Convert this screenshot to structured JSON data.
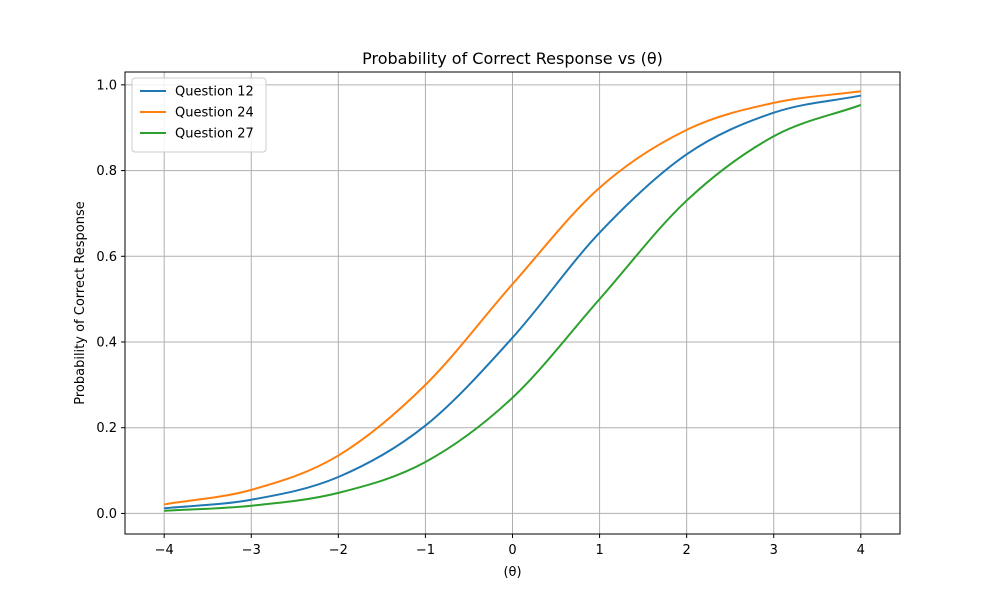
{
  "chart_data": {
    "type": "line",
    "title": "Probability of Correct Response vs (θ)",
    "xlabel": "(θ)",
    "ylabel": "Probability of Correct Response",
    "xlim": [
      -4.45,
      4.45
    ],
    "ylim": [
      -0.048,
      1.03
    ],
    "xticks": [
      -4,
      -3,
      -2,
      -1,
      0,
      1,
      2,
      3,
      4
    ],
    "xtick_labels": [
      "−4",
      "−3",
      "−2",
      "−1",
      "0",
      "1",
      "2",
      "3",
      "4"
    ],
    "yticks": [
      0.0,
      0.2,
      0.4,
      0.6,
      0.8,
      1.0
    ],
    "ytick_labels": [
      "0.0",
      "0.2",
      "0.4",
      "0.6",
      "0.8",
      "1.0"
    ],
    "grid": true,
    "legend_position": "top-left",
    "x": [
      -4,
      -3,
      -2,
      -1,
      0,
      1,
      2,
      3,
      4
    ],
    "series": [
      {
        "name": "Question 12",
        "color": "#1f77b4",
        "values": [
          0.012,
          0.032,
          0.085,
          0.205,
          0.41,
          0.655,
          0.838,
          0.935,
          0.975
        ]
      },
      {
        "name": "Question 24",
        "color": "#ff7f0e",
        "values": [
          0.021,
          0.055,
          0.135,
          0.3,
          0.535,
          0.76,
          0.895,
          0.958,
          0.985
        ]
      },
      {
        "name": "Question 27",
        "color": "#2ca02c",
        "values": [
          0.006,
          0.018,
          0.048,
          0.12,
          0.27,
          0.5,
          0.73,
          0.88,
          0.953
        ]
      }
    ]
  }
}
